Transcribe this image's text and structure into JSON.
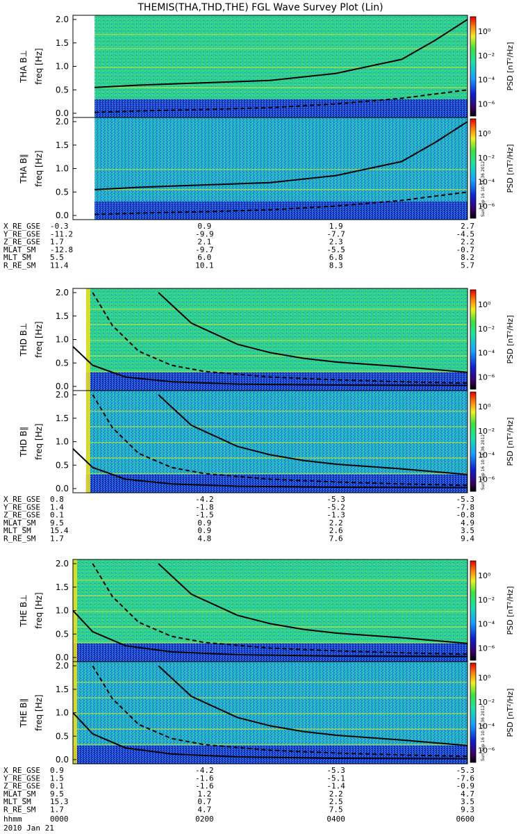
{
  "title": "THEMIS(THA,THD,THE) FGL Wave Survey Plot (Lin)",
  "stamp": "Sun Sep 16 10:16:36 2012",
  "colorbar": {
    "label": "PSD [nT²/Hz]",
    "ticks": [
      "10⁰",
      "10⁻²",
      "10⁻⁴",
      "10⁻⁶"
    ],
    "tick_exponents": [
      0,
      -2,
      -4,
      -6
    ]
  },
  "time_axis": {
    "label": "hhmm",
    "date": "2010 Jan 21",
    "ticks": [
      "0000",
      "0200",
      "0400",
      "0600"
    ]
  },
  "colors": {
    "background_field": "#2fd48a",
    "low_band": "#1a3bd0",
    "harmonic_line": "#c8e23a",
    "edge_band": "#f2e21a",
    "curve": "#000000"
  },
  "chart_data": [
    {
      "type": "heatmap",
      "probe": "THA",
      "panels": [
        {
          "name": "THA B⊥",
          "ylabel": "THA B⊥",
          "ylabel2": "freq [Hz]",
          "yticks": [
            "0.0",
            "0.5",
            "1.0",
            "1.5",
            "2.0"
          ],
          "ylim": [
            0,
            2.0
          ],
          "data_start_hour": 0.33,
          "harmonics": [
            0.55,
            0.98,
            1.38,
            1.68
          ],
          "solid_curve": {
            "x": [
              0.33,
              1.0,
              2.0,
              3.0,
              4.0,
              5.0,
              5.5,
              6.0
            ],
            "y": [
              0.55,
              0.6,
              0.65,
              0.7,
              0.85,
              1.15,
              1.55,
              2.0
            ]
          },
          "dashed_curve": {
            "x": [
              0.33,
              1.0,
              2.0,
              3.0,
              4.0,
              5.0,
              6.0
            ],
            "y": [
              0.02,
              0.05,
              0.08,
              0.12,
              0.2,
              0.32,
              0.5
            ]
          }
        },
        {
          "name": "THA B∥",
          "ylabel": "THA B∥",
          "ylabel2": "freq [Hz]",
          "yticks": [
            "0.0",
            "0.5",
            "1.0",
            "1.5",
            "2.0"
          ],
          "ylim": [
            0,
            2.0
          ],
          "data_start_hour": 0.33,
          "harmonics": [
            0.55,
            0.98
          ],
          "solid_curve": {
            "x": [
              0.33,
              1.0,
              2.0,
              3.0,
              4.0,
              5.0,
              5.5,
              6.0
            ],
            "y": [
              0.55,
              0.6,
              0.65,
              0.7,
              0.85,
              1.15,
              1.55,
              2.0
            ]
          },
          "dashed_curve": {
            "x": [
              0.33,
              1.0,
              2.0,
              3.0,
              4.0,
              5.0,
              6.0
            ],
            "y": [
              0.02,
              0.05,
              0.08,
              0.12,
              0.2,
              0.32,
              0.5
            ]
          }
        }
      ],
      "ephemeris": [
        {
          "name": "X_RE_GSE",
          "values": [
            "-0.3",
            "0.9",
            "1.9",
            "2.7"
          ]
        },
        {
          "name": "Y_RE_GSE",
          "values": [
            "-11.2",
            "-9.9",
            "-7.7",
            "-4.5"
          ]
        },
        {
          "name": "Z_RE_GSE",
          "values": [
            "1.7",
            "2.1",
            "2.3",
            "2.2"
          ]
        },
        {
          "name": "MLAT_SM",
          "values": [
            "-12.8",
            "-9.7",
            "-5.5",
            "-0.7"
          ]
        },
        {
          "name": "MLT_SM",
          "values": [
            "5.5",
            "6.0",
            "6.8",
            "8.2"
          ]
        },
        {
          "name": "R_RE_SM",
          "values": [
            "11.4",
            "10.1",
            "8.3",
            "5.7"
          ]
        }
      ]
    },
    {
      "type": "heatmap",
      "probe": "THD",
      "panels": [
        {
          "name": "THD B⊥",
          "ylabel": "THD B⊥",
          "ylabel2": "freq [Hz]",
          "yticks": [
            "0.0",
            "0.5",
            "1.0",
            "1.5",
            "2.0"
          ],
          "ylim": [
            0,
            2.0
          ],
          "data_start_hour": 0.2,
          "harmonics": [
            0.32,
            0.65,
            0.98,
            1.32,
            1.65
          ],
          "solid_curve": {
            "x": [
              1.3,
              1.8,
              2.5,
              3.0,
              3.5,
              4.0,
              5.0,
              6.0
            ],
            "y": [
              2.0,
              1.35,
              0.9,
              0.72,
              0.6,
              0.52,
              0.42,
              0.3
            ]
          },
          "dashed_curve": {
            "x": [
              0.3,
              0.6,
              1.0,
              1.5,
              2.0,
              3.0,
              4.0,
              5.0,
              6.0
            ],
            "y": [
              2.0,
              1.3,
              0.75,
              0.45,
              0.32,
              0.2,
              0.14,
              0.1,
              0.07
            ]
          },
          "second_solid": {
            "x": [
              0.0,
              0.3,
              0.8,
              1.5,
              2.5,
              4.0,
              6.0
            ],
            "y": [
              0.85,
              0.45,
              0.2,
              0.1,
              0.05,
              0.03,
              0.02
            ]
          }
        },
        {
          "name": "THD B∥",
          "ylabel": "THD B∥",
          "ylabel2": "freq [Hz]",
          "yticks": [
            "0.0",
            "0.5",
            "1.0",
            "1.5",
            "2.0"
          ],
          "ylim": [
            0,
            2.0
          ],
          "data_start_hour": 0.2,
          "harmonics": [
            0.32,
            0.65,
            0.98,
            1.32,
            1.65
          ],
          "solid_curve": {
            "x": [
              1.3,
              1.8,
              2.5,
              3.0,
              3.5,
              4.0,
              5.0,
              6.0
            ],
            "y": [
              2.0,
              1.35,
              0.9,
              0.72,
              0.6,
              0.52,
              0.42,
              0.3
            ]
          },
          "dashed_curve": {
            "x": [
              0.3,
              0.6,
              1.0,
              1.5,
              2.0,
              3.0,
              4.0,
              5.0,
              6.0
            ],
            "y": [
              2.0,
              1.3,
              0.75,
              0.45,
              0.32,
              0.2,
              0.14,
              0.1,
              0.07
            ]
          },
          "second_solid": {
            "x": [
              0.0,
              0.3,
              0.8,
              1.5,
              2.5,
              4.0,
              6.0
            ],
            "y": [
              0.85,
              0.45,
              0.2,
              0.1,
              0.05,
              0.03,
              0.02
            ]
          }
        }
      ],
      "ephemeris": [
        {
          "name": "X_RE_GSE",
          "values": [
            "0.8",
            "-4.2",
            "-5.3",
            "-5.3"
          ]
        },
        {
          "name": "Y_RE_GSE",
          "values": [
            "1.4",
            "-1.8",
            "-5.2",
            "-7.8"
          ]
        },
        {
          "name": "Z_RE_GSE",
          "values": [
            "0.1",
            "-1.5",
            "-1.3",
            "-0.8"
          ]
        },
        {
          "name": "MLAT_SM",
          "values": [
            "9.5",
            "0.9",
            "2.2",
            "4.9"
          ]
        },
        {
          "name": "MLT_SM",
          "values": [
            "15.4",
            "0.9",
            "2.6",
            "3.5"
          ]
        },
        {
          "name": "R_RE_SM",
          "values": [
            "1.7",
            "4.8",
            "7.6",
            "9.4"
          ]
        }
      ]
    },
    {
      "type": "heatmap",
      "probe": "THE",
      "panels": [
        {
          "name": "THE B⊥",
          "ylabel": "THE B⊥",
          "ylabel2": "freq [Hz]",
          "yticks": [
            "0.0",
            "0.5",
            "1.0",
            "1.5",
            "2.0"
          ],
          "ylim": [
            0,
            2.0
          ],
          "data_start_hour": 0.0,
          "harmonics": [
            0.32,
            0.65,
            0.98,
            1.32,
            1.65
          ],
          "solid_curve": {
            "x": [
              1.3,
              1.8,
              2.5,
              3.0,
              3.5,
              4.0,
              5.0,
              6.0
            ],
            "y": [
              2.0,
              1.35,
              0.9,
              0.72,
              0.6,
              0.52,
              0.42,
              0.3
            ]
          },
          "dashed_curve": {
            "x": [
              0.3,
              0.6,
              1.0,
              1.5,
              2.0,
              3.0,
              4.0,
              5.0,
              6.0
            ],
            "y": [
              2.0,
              1.3,
              0.75,
              0.45,
              0.32,
              0.2,
              0.14,
              0.1,
              0.07
            ]
          },
          "second_solid": {
            "x": [
              0.0,
              0.3,
              0.8,
              1.5,
              2.5,
              4.0,
              6.0
            ],
            "y": [
              1.0,
              0.55,
              0.25,
              0.12,
              0.06,
              0.03,
              0.02
            ]
          }
        },
        {
          "name": "THE B∥",
          "ylabel": "THE B∥",
          "ylabel2": "freq [Hz]",
          "yticks": [
            "0.0",
            "0.5",
            "1.0",
            "1.5",
            "2.0"
          ],
          "ylim": [
            0,
            2.0
          ],
          "data_start_hour": 0.0,
          "harmonics": [
            0.32,
            0.65,
            0.98,
            1.32,
            1.65
          ],
          "solid_curve": {
            "x": [
              1.3,
              1.8,
              2.5,
              3.0,
              3.5,
              4.0,
              5.0,
              6.0
            ],
            "y": [
              2.0,
              1.35,
              0.9,
              0.72,
              0.6,
              0.52,
              0.42,
              0.3
            ]
          },
          "dashed_curve": {
            "x": [
              0.3,
              0.6,
              1.0,
              1.5,
              2.0,
              3.0,
              4.0,
              5.0,
              6.0
            ],
            "y": [
              2.0,
              1.3,
              0.75,
              0.45,
              0.32,
              0.2,
              0.14,
              0.1,
              0.07
            ]
          },
          "second_solid": {
            "x": [
              0.0,
              0.3,
              0.8,
              1.5,
              2.5,
              4.0,
              6.0
            ],
            "y": [
              1.0,
              0.55,
              0.25,
              0.12,
              0.06,
              0.03,
              0.02
            ]
          }
        }
      ],
      "ephemeris": [
        {
          "name": "X_RE_GSE",
          "values": [
            "0.9",
            "-4.2",
            "-5.3",
            "-5.3"
          ]
        },
        {
          "name": "Y_RE_GSE",
          "values": [
            "1.5",
            "-1.6",
            "-5.1",
            "-7.6"
          ]
        },
        {
          "name": "Z_RE_GSE",
          "values": [
            "0.1",
            "-1.6",
            "-1.4",
            "-0.9"
          ]
        },
        {
          "name": "MLAT_SM",
          "values": [
            "9.5",
            "1.2",
            "2.2",
            "4.7"
          ]
        },
        {
          "name": "MLT_SM",
          "values": [
            "15.3",
            "0.7",
            "2.5",
            "3.5"
          ]
        },
        {
          "name": "R_RE_SM",
          "values": [
            "1.7",
            "4.7",
            "7.5",
            "9.3"
          ]
        }
      ]
    }
  ]
}
